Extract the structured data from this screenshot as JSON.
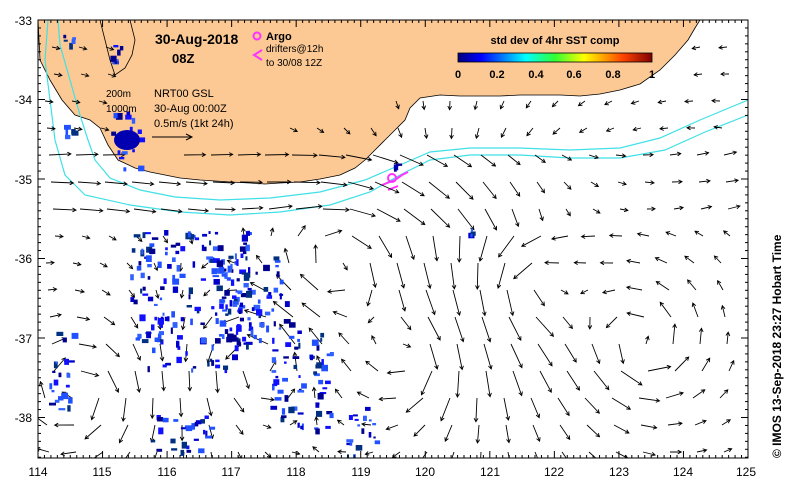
{
  "map": {
    "date": "30-Aug-2018",
    "time": "08Z",
    "credit": "© IMOS 13-Sep-2018 23:27 Hobart Time",
    "lon_ticks": [
      "114",
      "115",
      "116",
      "117",
      "118",
      "119",
      "120",
      "121",
      "122",
      "123",
      "124",
      "125"
    ],
    "lat_ticks": [
      "-33",
      "-34",
      "-35",
      "-36",
      "-37",
      "-38"
    ],
    "legend": {
      "argo": "Argo",
      "drifters": "drifters@12h",
      "drifters_to": "to 30/08 12Z",
      "isobath_200": "200m",
      "isobath_1000": "1000m",
      "product": "NRT00 GSL",
      "product_time": "30-Aug 00:00Z",
      "scale": "0.5m/s (1kt 24h)"
    },
    "colorbar": {
      "title": "std dev of 4hr SST comp",
      "ticks": [
        "0",
        "0.2",
        "0.4",
        "0.6",
        "0.8",
        "1"
      ]
    },
    "colors": {
      "land": "#fcc994",
      "isobath": "#3fe0e6",
      "argo": "#ff33ff",
      "arrow": "#000000"
    }
  }
}
